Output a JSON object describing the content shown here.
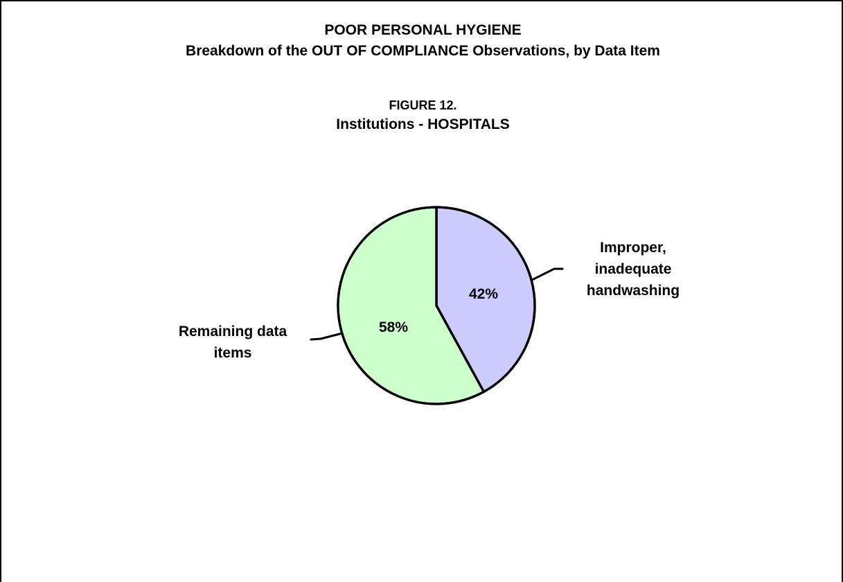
{
  "header": {
    "title": "POOR PERSONAL HYGIENE",
    "subtitle": "Breakdown of the OUT OF COMPLIANCE Observations, by Data Item"
  },
  "figure": {
    "number": "FIGURE 12.",
    "name": "Institutions - HOSPITALS"
  },
  "chart_data": {
    "type": "pie",
    "title": "Institutions - HOSPITALS",
    "slices": [
      {
        "label_lines": [
          "Improper,",
          "inadequate",
          "handwashing"
        ],
        "value": 42,
        "value_label": "42%",
        "color": "#ccccff"
      },
      {
        "label_lines": [
          "Remaining data",
          "items"
        ],
        "value": 58,
        "value_label": "58%",
        "color": "#ccffcc"
      }
    ],
    "start_angle_deg": 0,
    "direction": "clockwise",
    "outline_color": "#000000",
    "legend": "none"
  }
}
